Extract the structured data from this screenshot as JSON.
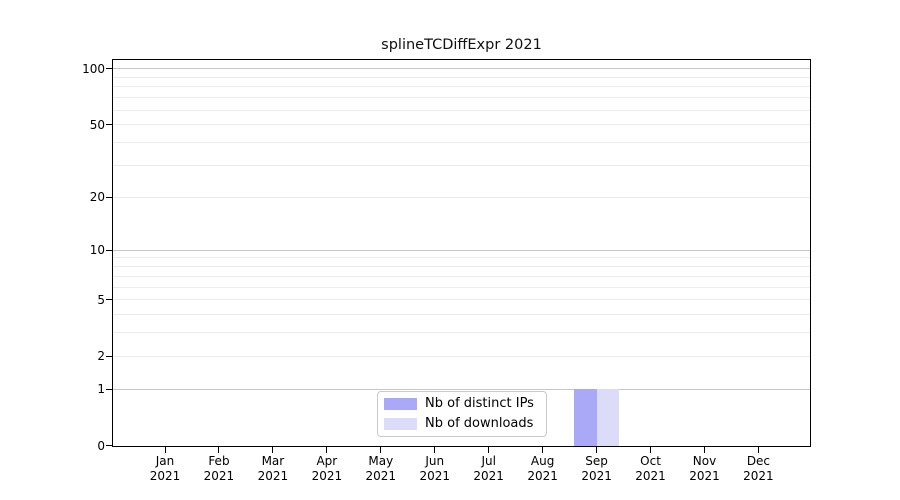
{
  "chart_data": {
    "type": "bar",
    "title": "splineTCDiffExpr 2021",
    "categories": [
      "Jan",
      "Feb",
      "Mar",
      "Apr",
      "May",
      "Jun",
      "Jul",
      "Aug",
      "Sep",
      "Oct",
      "Nov",
      "Dec"
    ],
    "year": "2021",
    "series": [
      {
        "name": "Nb of distinct IPs",
        "color": "#a9a9f7",
        "values": [
          0,
          0,
          0,
          0,
          0,
          0,
          0,
          0,
          1,
          0,
          0,
          0
        ]
      },
      {
        "name": "Nb of downloads",
        "color": "#dcdcf9",
        "values": [
          0,
          0,
          0,
          0,
          0,
          0,
          0,
          0,
          1,
          0,
          0,
          0
        ]
      }
    ],
    "yscale": "log1p",
    "ylim": [
      0,
      112
    ],
    "y_ticks": [
      0,
      1,
      2,
      5,
      10,
      20,
      50,
      100
    ],
    "y_major_gridlines": [
      1,
      10,
      100
    ],
    "y_minor_gridlines": [
      2,
      3,
      4,
      5,
      6,
      7,
      8,
      9,
      20,
      30,
      40,
      50,
      60,
      70,
      80,
      90
    ],
    "grid": true,
    "legend_position": "inside-bottom-center"
  },
  "colors": {
    "bar_distinct_ips": "#a9a9f7",
    "bar_downloads": "#dcdcf9",
    "grid_major": "#c6c6c6",
    "grid_minor": "#ececec",
    "axis": "#000000",
    "legend_border": "#c9c9c9"
  }
}
